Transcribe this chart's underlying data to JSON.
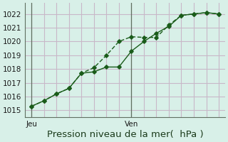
{
  "bg_color": "#d8f0e8",
  "grid_color": "#c8b8c8",
  "line_color": "#1a5c1a",
  "marker_color": "#1a5c1a",
  "title": "Pression niveau de la mer(  hPa )",
  "ylabel_ticks": [
    1015,
    1016,
    1017,
    1018,
    1019,
    1020,
    1021,
    1022
  ],
  "ylim": [
    1014.5,
    1022.8
  ],
  "day_labels": [
    "Jeu",
    "Ven"
  ],
  "day_positions": [
    0,
    8
  ],
  "vline_positions": [
    0,
    8
  ],
  "series1_x": [
    0,
    1,
    2,
    3,
    4,
    5,
    6,
    7,
    8,
    9,
    10,
    11,
    12,
    13,
    14,
    15
  ],
  "series1_y": [
    1015.3,
    1015.7,
    1016.2,
    1016.6,
    1017.7,
    1018.1,
    1019.0,
    1020.0,
    1020.35,
    1020.3,
    1020.3,
    1021.2,
    1021.9,
    1022.0,
    1022.1,
    1022.0
  ],
  "series2_x": [
    0,
    1,
    2,
    3,
    4,
    5,
    6,
    7,
    8,
    9,
    10,
    11,
    12,
    13,
    14,
    15
  ],
  "series2_y": [
    1015.3,
    1015.7,
    1016.2,
    1016.6,
    1017.7,
    1017.8,
    1018.15,
    1018.15,
    1019.3,
    1020.0,
    1020.6,
    1021.1,
    1021.9,
    1022.0,
    1022.1,
    1022.0
  ],
  "xlim": [
    -0.5,
    15.5
  ],
  "title_fontsize": 9.5,
  "tick_fontsize": 7.5,
  "day_fontsize": 7.5
}
